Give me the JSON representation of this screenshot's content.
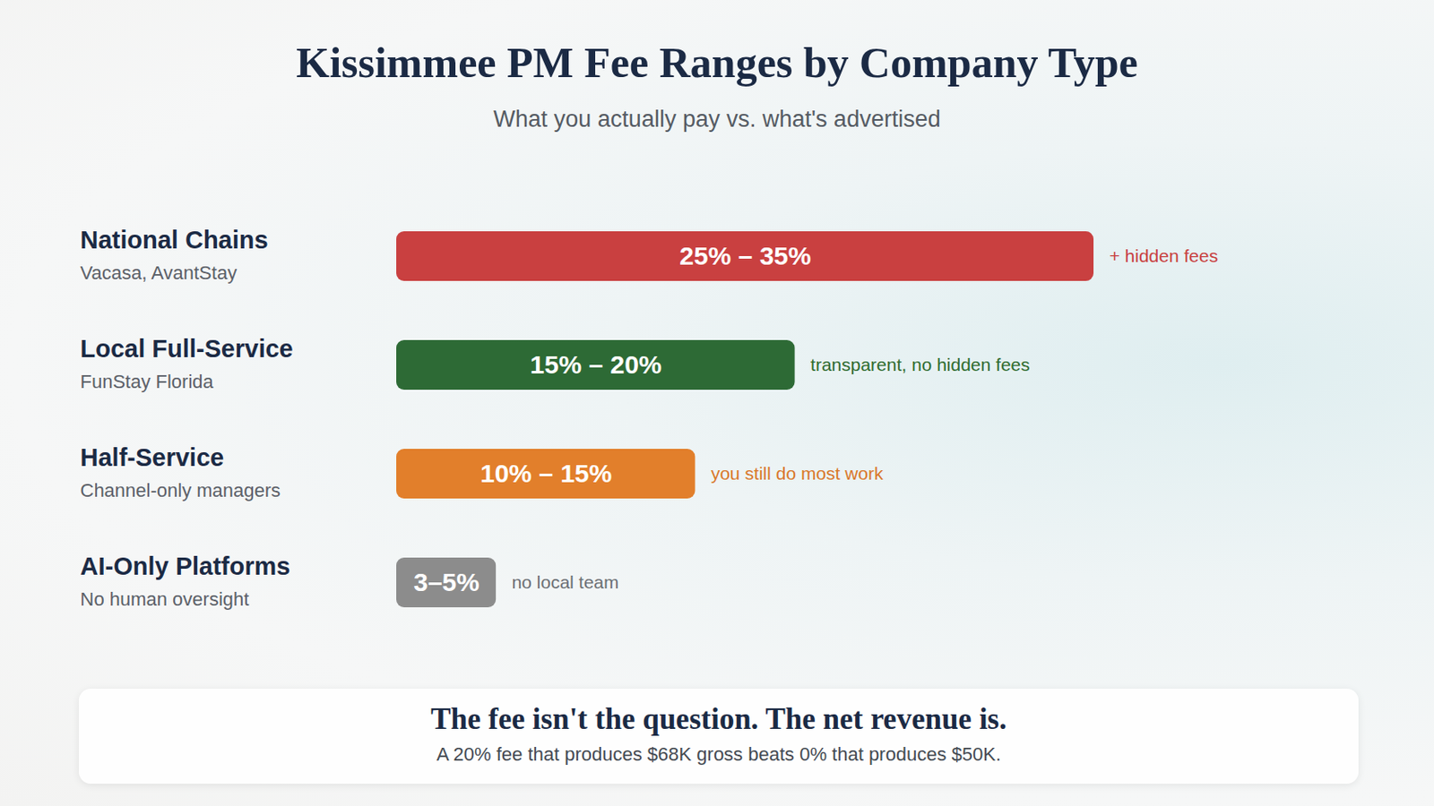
{
  "chart_data": {
    "type": "bar",
    "orientation": "horizontal",
    "title": "Kissimmee PM Fee Ranges by Company Type",
    "subtitle": "What you actually pay vs. what's advertised",
    "categories": [
      "National Chains",
      "Local Full-Service",
      "Half-Service",
      "AI-Only Platforms"
    ],
    "category_descriptions": [
      "Vacasa, AvantStay",
      "FunStay Florida",
      "Channel-only managers",
      "No human oversight"
    ],
    "values": [
      35,
      20,
      15,
      5
    ],
    "value_labels": [
      "25% – 35%",
      "15% – 20%",
      "10% – 15%",
      "3–5%"
    ],
    "colors": [
      "#c94040",
      "#2d6a35",
      "#e27f2b",
      "#8c8c8c"
    ],
    "annotations": [
      {
        "text": "+ hidden fees",
        "color": "#c8403f"
      },
      {
        "text": "transparent, no hidden fees",
        "color": "#2e6b2e"
      },
      {
        "text": "you still do most work",
        "color": "#d9772a"
      },
      {
        "text": "no local team",
        "color": "#6b6f74"
      }
    ],
    "xlim": [
      0,
      35
    ],
    "tick_labels": false,
    "grid": false,
    "data_labels": true,
    "caption": {
      "title": "The fee isn't the question. The net revenue is.",
      "text": "A 20% fee that produces $68K gross beats 0% that produces $50K."
    }
  }
}
